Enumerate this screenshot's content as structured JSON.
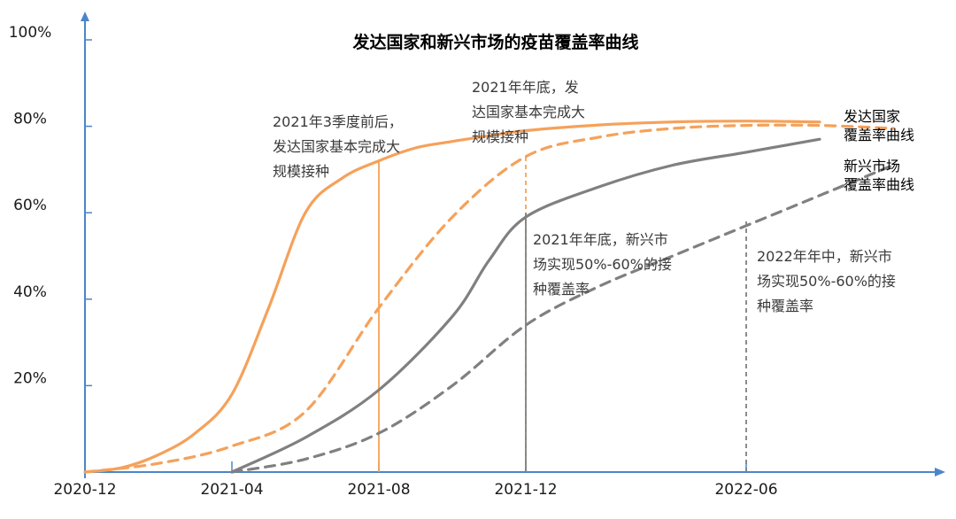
{
  "chart_data": {
    "type": "line",
    "title": "发达国家和新兴市场的疫苗覆盖率曲线",
    "xlabel": "",
    "ylabel": "",
    "x_ticks": [
      "2020-12",
      "2021-04",
      "2021-08",
      "2021-12",
      "2022-06"
    ],
    "x_tick_months": [
      0,
      4,
      8,
      12,
      18
    ],
    "xlim": [
      0,
      23
    ],
    "y_ticks": [
      "100%",
      "80%",
      "60%",
      "40%",
      "20%"
    ],
    "y_tick_values": [
      100,
      80,
      60,
      40,
      20
    ],
    "ylim": [
      0,
      100
    ],
    "colors": {
      "orange": "#f5a15a",
      "gray": "#808080",
      "axis": "#4a86c8"
    },
    "series": [
      {
        "name": "发达国家覆盖率曲线（实际）",
        "style": "solid",
        "color": "#f5a15a",
        "x": [
          0,
          1,
          2,
          3,
          4,
          5,
          6,
          7,
          8,
          9,
          10,
          11,
          12,
          14,
          16,
          18,
          20
        ],
        "y": [
          0,
          1,
          4,
          9,
          18,
          38,
          60,
          68,
          72,
          75,
          76.5,
          77.8,
          79,
          80.3,
          81,
          81.2,
          81
        ]
      },
      {
        "name": "发达国家覆盖率曲线（预期）",
        "style": "dashed",
        "color": "#f5a15a",
        "x": [
          0,
          2,
          4,
          6,
          8,
          10,
          12,
          14,
          16,
          18,
          20,
          22
        ],
        "y": [
          0,
          2,
          6,
          14,
          38,
          59,
          73,
          77.5,
          79.5,
          80.2,
          80.2,
          79.5
        ]
      },
      {
        "name": "新兴市场覆盖率曲线（实际）",
        "style": "solid",
        "color": "#808080",
        "x": [
          4,
          6,
          8,
          10,
          11,
          12,
          14,
          16,
          18,
          20
        ],
        "y": [
          0,
          8,
          19,
          36,
          49,
          59,
          66,
          71,
          74,
          77
        ]
      },
      {
        "name": "新兴市场覆盖率曲线（预期）",
        "style": "dashed",
        "color": "#808080",
        "x": [
          4,
          6,
          8,
          10,
          12,
          14,
          16,
          18,
          20,
          22
        ],
        "y": [
          0,
          3,
          9,
          20,
          34,
          43,
          50,
          57,
          64,
          71
        ]
      }
    ],
    "markers": [
      {
        "x": 8,
        "y": 72,
        "color": "#f5a15a",
        "style": "solid"
      },
      {
        "x": 12,
        "y": 73,
        "color": "#f5a15a",
        "style": "dashed"
      },
      {
        "x": 12,
        "y": 60,
        "color": "#808080",
        "style": "solid"
      },
      {
        "x": 18,
        "y": 58,
        "color": "#808080",
        "style": "dashed"
      }
    ],
    "annotations": [
      {
        "lines": [
          "2021年3季度前后，",
          "发达国家基本完成大",
          "规模接种"
        ]
      },
      {
        "lines": [
          "2021年年底，发",
          "达国家基本完成大",
          "规模接种"
        ]
      },
      {
        "lines": [
          "2021年年底，新兴市",
          "场实现50%-60%的接",
          "种覆盖率"
        ]
      },
      {
        "lines": [
          "2022年年中，新兴市",
          "场实现50%-60%的接",
          "种覆盖率"
        ]
      }
    ],
    "legend": [
      {
        "lines": [
          "发达国家",
          "覆盖率曲线"
        ]
      },
      {
        "lines": [
          "新兴市场",
          "覆盖率曲线"
        ]
      }
    ]
  }
}
